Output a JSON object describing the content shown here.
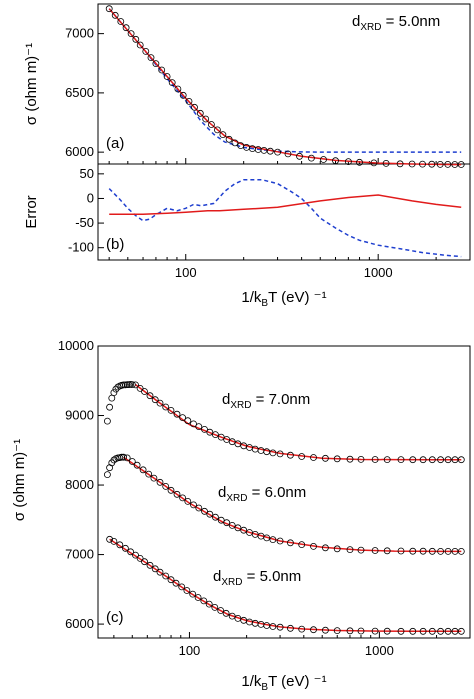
{
  "chart_data": [
    {
      "panel": "(a)",
      "type": "scatter",
      "xscale": "log",
      "xlim": [
        35,
        3000
      ],
      "ylim": [
        5900,
        7250
      ],
      "ylabel": "σ (ohm m)⁻¹",
      "yticks": [
        6000,
        6500,
        7000
      ],
      "annotation": {
        "main": "d",
        "sub": "XRD",
        "rest": " = 5.0nm"
      },
      "colors": {
        "fit": "#e11b1b",
        "dashed": "#1f3fcf",
        "points": "#000000"
      },
      "series": [
        {
          "kind": "points",
          "x": [
            40,
            43,
            46,
            49,
            52,
            55,
            58,
            62,
            66,
            70,
            75,
            80,
            85,
            91,
            97,
            104,
            111,
            119,
            127,
            136,
            146,
            156,
            168,
            180,
            193,
            207,
            222,
            238,
            255,
            275,
            300,
            340,
            390,
            450,
            520,
            600,
            700,
            800,
            950,
            1100,
            1300,
            1500,
            1700,
            1900,
            2100,
            2300,
            2500,
            2700
          ],
          "y": [
            7210,
            7155,
            7102,
            7050,
            7000,
            6952,
            6904,
            6850,
            6798,
            6747,
            6693,
            6638,
            6587,
            6533,
            6480,
            6428,
            6378,
            6328,
            6280,
            6233,
            6188,
            6148,
            6108,
            6078,
            6055,
            6040,
            6030,
            6022,
            6015,
            6008,
            6000,
            5985,
            5965,
            5950,
            5938,
            5928,
            5920,
            5914,
            5909,
            5905,
            5902,
            5900,
            5899,
            5898,
            5897,
            5897,
            5896,
            5896
          ]
        },
        {
          "kind": "line",
          "style": "solid",
          "x": [
            40,
            60,
            80,
            100,
            130,
            160,
            200,
            250,
            300,
            400,
            600,
            1000,
            1500,
            2000,
            2700
          ],
          "y": [
            7210,
            6875,
            6638,
            6455,
            6260,
            6135,
            6060,
            6027,
            6003,
            5966,
            5930,
            5908,
            5900,
            5897,
            5895
          ]
        },
        {
          "kind": "line",
          "style": "dashed",
          "x": [
            40,
            60,
            80,
            100,
            120,
            140,
            160,
            200,
            250,
            300,
            400,
            500,
            1000,
            2700
          ],
          "y": [
            7210,
            6875,
            6620,
            6435,
            6262,
            6150,
            6085,
            6040,
            6020,
            6008,
            6002,
            6000,
            6000,
            6000
          ]
        }
      ]
    },
    {
      "panel": "(b)",
      "type": "line",
      "xscale": "log",
      "xlim": [
        35,
        3000
      ],
      "ylim": [
        -125,
        70
      ],
      "ylabel": "Error",
      "yticks": [
        -100,
        -50,
        0,
        50
      ],
      "xlabel": {
        "main": "1/k",
        "sub": "B",
        "rest": "T (eV) ⁻¹"
      },
      "xticks": [
        100,
        1000
      ],
      "series": [
        {
          "style": "solid",
          "x": [
            40,
            60,
            80,
            100,
            130,
            150,
            200,
            300,
            500,
            700,
            1000,
            1500,
            2000,
            2700
          ],
          "y": [
            -32,
            -32,
            -30,
            -28,
            -25,
            -25,
            -22,
            -18,
            -5,
            2,
            7,
            -5,
            -12,
            -18
          ]
        },
        {
          "style": "dashed",
          "x": [
            40,
            45,
            50,
            55,
            60,
            65,
            70,
            80,
            90,
            100,
            110,
            120,
            140,
            160,
            180,
            200,
            250,
            300,
            350,
            400,
            450,
            500,
            600,
            700,
            800,
            1000,
            1300,
            1700,
            2200,
            2700
          ],
          "y": [
            20,
            0,
            -20,
            -35,
            -45,
            -42,
            -33,
            -20,
            -25,
            -20,
            -12,
            -15,
            -10,
            15,
            30,
            38,
            38,
            30,
            15,
            0,
            -20,
            -40,
            -60,
            -75,
            -85,
            -95,
            -102,
            -110,
            -115,
            -118
          ]
        }
      ]
    },
    {
      "panel": "(c)",
      "type": "scatter",
      "xscale": "log",
      "xlim": [
        33,
        3000
      ],
      "ylim": [
        5800,
        10000
      ],
      "ylabel": "σ (ohm m)⁻¹",
      "yticks": [
        6000,
        7000,
        8000,
        9000,
        10000
      ],
      "xlabel": {
        "main": "1/k",
        "sub": "B",
        "rest": "T (eV) ⁻¹"
      },
      "xticks": [
        100,
        1000
      ],
      "annotations": [
        {
          "main": "d",
          "sub": "XRD",
          "rest": " = 7.0nm"
        },
        {
          "main": "d",
          "sub": "XRD",
          "rest": " = 6.0nm"
        },
        {
          "main": "d",
          "sub": "XRD",
          "rest": " = 5.0nm"
        }
      ],
      "series": [
        {
          "name": "7.0nm",
          "points_x": [
            37,
            38,
            39,
            40,
            41,
            42,
            43,
            44,
            45,
            46,
            47,
            48,
            49,
            50,
            52,
            55,
            58,
            62,
            66,
            70,
            75,
            80,
            86,
            92,
            98,
            105,
            112,
            120,
            128,
            137,
            147,
            157,
            168,
            180,
            193,
            207,
            222,
            238,
            255,
            275,
            300,
            340,
            390,
            450,
            520,
            600,
            700,
            800,
            950,
            1100,
            1300,
            1500,
            1700,
            1900,
            2100,
            2300,
            2500,
            2700
          ],
          "points_y": [
            8920,
            9120,
            9250,
            9330,
            9380,
            9410,
            9425,
            9435,
            9440,
            9440,
            9445,
            9445,
            9448,
            9445,
            9440,
            9390,
            9345,
            9285,
            9228,
            9178,
            9123,
            9073,
            9019,
            8970,
            8926,
            8880,
            8840,
            8800,
            8760,
            8725,
            8690,
            8655,
            8623,
            8593,
            8565,
            8540,
            8517,
            8497,
            8480,
            8462,
            8448,
            8430,
            8411,
            8396,
            8385,
            8377,
            8372,
            8369,
            8367,
            8366,
            8366,
            8365,
            8365,
            8365,
            8365,
            8365,
            8365,
            8365
          ],
          "fit_x": [
            52,
            70,
            100,
            150,
            200,
            300,
            500,
            800,
            1200,
            2000,
            2700
          ],
          "fit_y": [
            9445,
            9178,
            8870,
            8680,
            8560,
            8455,
            8385,
            8368,
            8366,
            8365,
            8365
          ]
        },
        {
          "name": "6.0nm",
          "points_x": [
            37,
            38,
            39,
            40,
            41,
            42,
            43,
            44,
            45,
            47,
            50,
            53,
            57,
            61,
            65,
            70,
            75,
            80,
            86,
            92,
            98,
            105,
            112,
            120,
            128,
            137,
            147,
            157,
            168,
            180,
            193,
            207,
            222,
            238,
            255,
            275,
            300,
            340,
            390,
            450,
            520,
            600,
            700,
            800,
            950,
            1100,
            1300,
            1500,
            1700,
            1900,
            2100,
            2300,
            2500,
            2700
          ],
          "points_y": [
            8150,
            8250,
            8320,
            8360,
            8380,
            8390,
            8395,
            8400,
            8400,
            8390,
            8338,
            8286,
            8220,
            8158,
            8100,
            8040,
            7980,
            7925,
            7867,
            7815,
            7765,
            7715,
            7670,
            7623,
            7580,
            7537,
            7495,
            7458,
            7420,
            7385,
            7350,
            7318,
            7290,
            7265,
            7240,
            7215,
            7195,
            7170,
            7143,
            7118,
            7098,
            7083,
            7072,
            7064,
            7058,
            7054,
            7051,
            7049,
            7048,
            7047,
            7046,
            7046,
            7046,
            7046
          ],
          "fit_x": [
            45,
            70,
            100,
            150,
            200,
            300,
            500,
            800,
            1200,
            2000,
            2700
          ],
          "fit_y": [
            8400,
            8040,
            7740,
            7465,
            7330,
            7195,
            7105,
            7064,
            7050,
            7046,
            7046
          ],
          "fit_note": ""
        },
        {
          "name": "5.0nm",
          "points_x": [
            38,
            40,
            43,
            46,
            49,
            52,
            55,
            58,
            62,
            66,
            70,
            75,
            80,
            85,
            91,
            97,
            104,
            111,
            119,
            127,
            136,
            146,
            156,
            168,
            180,
            193,
            207,
            222,
            238,
            255,
            275,
            300,
            340,
            390,
            450,
            520,
            600,
            700,
            800,
            950,
            1100,
            1300,
            1500,
            1700,
            1900,
            2100,
            2300,
            2500,
            2700
          ],
          "points_y": [
            7220,
            7190,
            7140,
            7090,
            7040,
            6992,
            6945,
            6898,
            6846,
            6795,
            6746,
            6692,
            6638,
            6588,
            6535,
            6483,
            6432,
            6383,
            6334,
            6287,
            6240,
            6196,
            6155,
            6115,
            6082,
            6055,
            6030,
            6012,
            5995,
            5980,
            5966,
            5955,
            5940,
            5928,
            5919,
            5912,
            5907,
            5903,
            5901,
            5899,
            5898,
            5897,
            5897,
            5896,
            5896,
            5896,
            5896,
            5896,
            5896
          ],
          "fit_x": [
            38,
            60,
            80,
            100,
            130,
            160,
            200,
            250,
            300,
            400,
            600,
            1000,
            1500,
            2000,
            2700
          ],
          "fit_y": [
            7220,
            6870,
            6640,
            6455,
            6265,
            6138,
            6050,
            5995,
            5960,
            5930,
            5908,
            5899,
            5897,
            5896,
            5896
          ]
        }
      ]
    }
  ]
}
